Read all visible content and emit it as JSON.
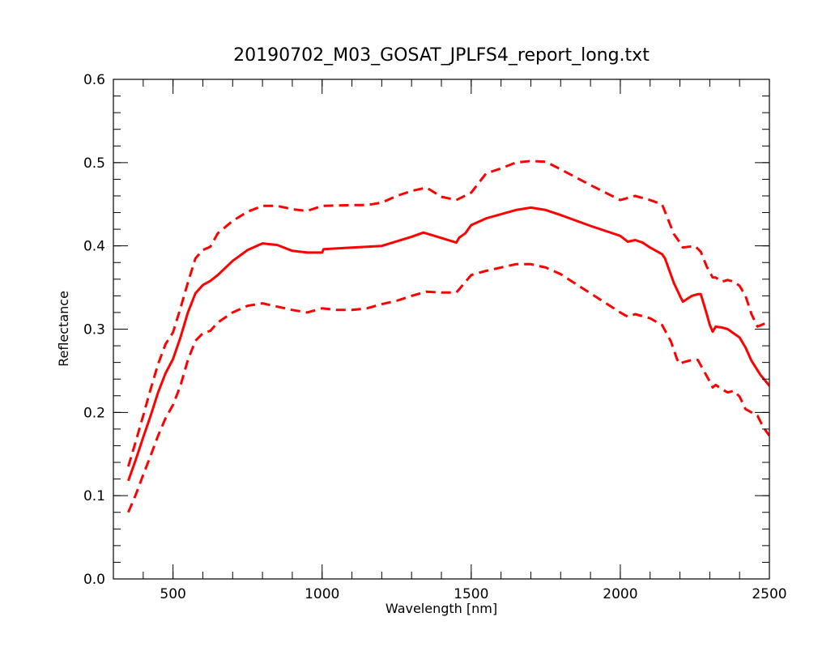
{
  "chart_data": {
    "type": "line",
    "title": "20190702_M03_GOSAT_JPLFS4_report_long.txt",
    "xlabel": "Wavelength [nm]",
    "ylabel": "Reflectance",
    "xlim": [
      300,
      2500
    ],
    "ylim": [
      0.0,
      0.6
    ],
    "x_ticks": [
      500,
      1000,
      1500,
      2000,
      2500
    ],
    "x_tick_labels": [
      "500",
      "1000",
      "1500",
      "2000",
      "2500"
    ],
    "y_ticks": [
      0.0,
      0.1,
      0.2,
      0.3,
      0.4,
      0.5,
      0.6
    ],
    "y_tick_labels": [
      "0.0",
      "0.1",
      "0.2",
      "0.3",
      "0.4",
      "0.5",
      "0.6"
    ],
    "x_minor_step": 100,
    "y_minor_step": 0.02,
    "grid": false,
    "legend": "none",
    "series": [
      {
        "style": "solid",
        "color": "#ff0000",
        "x": [
          350,
          375,
          400,
          425,
          450,
          475,
          500,
          525,
          550,
          575,
          600,
          625,
          650,
          700,
          750,
          800,
          850,
          900,
          950,
          1000,
          1005,
          1100,
          1200,
          1300,
          1340,
          1450,
          1460,
          1480,
          1500,
          1550,
          1600,
          1650,
          1700,
          1750,
          1800,
          1900,
          2000,
          2025,
          2050,
          2075,
          2100,
          2140,
          2150,
          2180,
          2200,
          2210,
          2240,
          2260,
          2270,
          2290,
          2300,
          2310,
          2320,
          2340,
          2360,
          2380,
          2400,
          2420,
          2440,
          2470,
          2500
        ],
        "y": [
          0.118,
          0.143,
          0.17,
          0.196,
          0.224,
          0.247,
          0.264,
          0.29,
          0.32,
          0.343,
          0.353,
          0.358,
          0.365,
          0.382,
          0.395,
          0.403,
          0.401,
          0.394,
          0.392,
          0.392,
          0.396,
          0.398,
          0.4,
          0.411,
          0.416,
          0.404,
          0.41,
          0.415,
          0.425,
          0.433,
          0.438,
          0.443,
          0.446,
          0.443,
          0.437,
          0.424,
          0.412,
          0.405,
          0.407,
          0.404,
          0.398,
          0.39,
          0.385,
          0.355,
          0.34,
          0.333,
          0.34,
          0.342,
          0.342,
          0.318,
          0.305,
          0.297,
          0.303,
          0.302,
          0.3,
          0.295,
          0.29,
          0.278,
          0.262,
          0.245,
          0.232
        ]
      },
      {
        "style": "dashed",
        "color": "#ff0000",
        "x": [
          350,
          375,
          400,
          425,
          450,
          475,
          500,
          525,
          550,
          575,
          600,
          625,
          650,
          700,
          750,
          800,
          850,
          900,
          950,
          1000,
          1100,
          1150,
          1200,
          1250,
          1300,
          1350,
          1400,
          1450,
          1500,
          1550,
          1600,
          1650,
          1700,
          1750,
          1800,
          1900,
          2000,
          2050,
          2100,
          2140,
          2160,
          2180,
          2200,
          2210,
          2250,
          2270,
          2290,
          2310,
          2320,
          2340,
          2360,
          2380,
          2400,
          2420,
          2440,
          2460,
          2480,
          2500
        ],
        "y": [
          0.135,
          0.165,
          0.196,
          0.228,
          0.258,
          0.282,
          0.296,
          0.325,
          0.356,
          0.385,
          0.395,
          0.399,
          0.415,
          0.43,
          0.441,
          0.448,
          0.448,
          0.444,
          0.442,
          0.448,
          0.449,
          0.449,
          0.452,
          0.46,
          0.466,
          0.47,
          0.459,
          0.455,
          0.464,
          0.487,
          0.493,
          0.5,
          0.502,
          0.501,
          0.492,
          0.473,
          0.455,
          0.46,
          0.455,
          0.45,
          0.432,
          0.414,
          0.404,
          0.398,
          0.4,
          0.393,
          0.375,
          0.362,
          0.362,
          0.357,
          0.359,
          0.357,
          0.352,
          0.34,
          0.318,
          0.303,
          0.306,
          0.308
        ]
      },
      {
        "style": "dashed",
        "color": "#ff0000",
        "x": [
          350,
          375,
          400,
          425,
          450,
          475,
          500,
          525,
          550,
          575,
          600,
          625,
          650,
          700,
          750,
          800,
          850,
          900,
          950,
          1000,
          1050,
          1100,
          1150,
          1200,
          1250,
          1300,
          1350,
          1400,
          1450,
          1460,
          1500,
          1550,
          1600,
          1650,
          1700,
          1750,
          1800,
          1900,
          2000,
          2025,
          2050,
          2100,
          2140,
          2170,
          2190,
          2200,
          2210,
          2240,
          2260,
          2280,
          2300,
          2310,
          2320,
          2340,
          2360,
          2380,
          2400,
          2420,
          2440,
          2460,
          2480,
          2500
        ],
        "y": [
          0.08,
          0.101,
          0.125,
          0.148,
          0.172,
          0.193,
          0.209,
          0.232,
          0.263,
          0.286,
          0.295,
          0.298,
          0.308,
          0.32,
          0.328,
          0.331,
          0.327,
          0.323,
          0.32,
          0.325,
          0.323,
          0.323,
          0.325,
          0.33,
          0.334,
          0.34,
          0.345,
          0.344,
          0.344,
          0.348,
          0.365,
          0.37,
          0.374,
          0.378,
          0.378,
          0.374,
          0.366,
          0.343,
          0.32,
          0.315,
          0.318,
          0.313,
          0.305,
          0.285,
          0.264,
          0.258,
          0.26,
          0.263,
          0.263,
          0.25,
          0.237,
          0.23,
          0.233,
          0.228,
          0.224,
          0.226,
          0.219,
          0.204,
          0.2,
          0.196,
          0.182,
          0.172
        ]
      }
    ]
  }
}
